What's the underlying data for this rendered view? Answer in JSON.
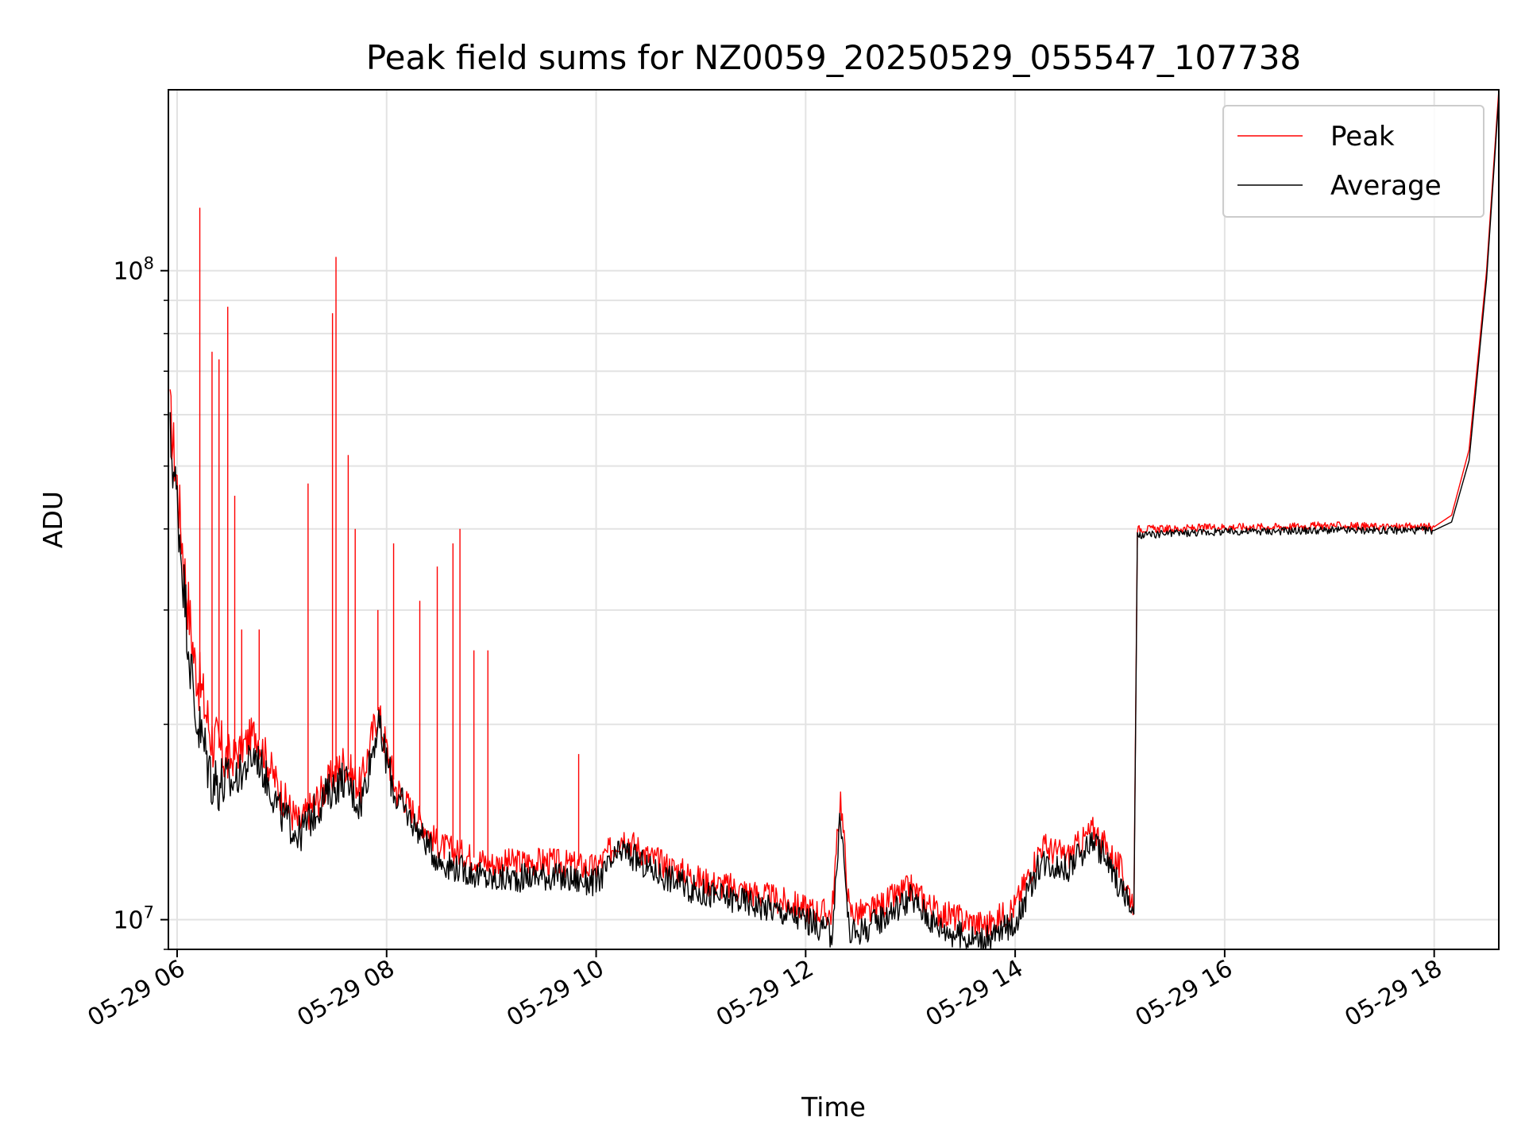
{
  "chart_data": {
    "type": "line",
    "title": "Peak field sums for NZ0059_20250529_055547_107738",
    "xlabel": "Time",
    "ylabel": "ADU",
    "yscale": "log",
    "xlim": [
      "05-29 05:55",
      "05-29 18:37"
    ],
    "ylim": [
      9000000,
      190000000
    ],
    "grid": true,
    "legend": "top-right",
    "x_ticks": [
      "05-29 06",
      "05-29 08",
      "05-29 10",
      "05-29 12",
      "05-29 14",
      "05-29 16",
      "05-29 18"
    ],
    "y_ticks": [
      {
        "value": 10000000,
        "label": "10^7"
      },
      {
        "value": 100000000,
        "label": "10^8"
      }
    ],
    "series": [
      {
        "name": "Peak",
        "color": "#ff0000",
        "x": [
          "05-29 05:56",
          "05-29 06:00",
          "05-29 06:05",
          "05-29 06:10",
          "05-29 06:20",
          "05-29 06:30",
          "05-29 06:45",
          "05-29 07:00",
          "05-29 07:10",
          "05-29 07:25",
          "05-29 07:35",
          "05-29 07:45",
          "05-29 07:55",
          "05-29 08:05",
          "05-29 08:30",
          "05-29 09:00",
          "05-29 09:30",
          "05-29 10:00",
          "05-29 10:15",
          "05-29 10:30",
          "05-29 11:00",
          "05-29 11:30",
          "05-29 12:00",
          "05-29 12:15",
          "05-29 12:20",
          "05-29 12:25",
          "05-29 12:35",
          "05-29 13:00",
          "05-29 13:15",
          "05-29 13:30",
          "05-29 13:45",
          "05-29 14:00",
          "05-29 14:15",
          "05-29 14:30",
          "05-29 14:45",
          "05-29 15:00",
          "05-29 15:08",
          "05-29 15:10",
          "05-29 15:30",
          "05-29 16:00",
          "05-29 16:30",
          "05-29 17:00",
          "05-29 17:30",
          "05-29 18:00",
          "05-29 18:10",
          "05-29 18:20",
          "05-29 18:30",
          "05-29 18:37"
        ],
        "values": [
          60000000,
          47000000,
          33000000,
          25000000,
          19000000,
          17500000,
          19500000,
          15500000,
          14000000,
          16000000,
          17500000,
          16000000,
          21000000,
          16000000,
          13000000,
          12200000,
          12300000,
          12000000,
          13500000,
          12500000,
          11500000,
          11000000,
          10400000,
          10200000,
          15500000,
          10300000,
          10200000,
          11200000,
          10300000,
          10000000,
          9800000,
          10500000,
          13000000,
          12500000,
          13800000,
          12000000,
          10600000,
          40000000,
          40000000,
          40300000,
          40300000,
          40500000,
          40300000,
          40300000,
          42000000,
          53000000,
          100000000,
          190000000
        ],
        "spikes": [
          {
            "x": "05-29 06:13",
            "value": 125000000
          },
          {
            "x": "05-29 06:20",
            "value": 75000000
          },
          {
            "x": "05-29 06:24",
            "value": 73000000
          },
          {
            "x": "05-29 06:29",
            "value": 88000000
          },
          {
            "x": "05-29 06:33",
            "value": 45000000
          },
          {
            "x": "05-29 06:37",
            "value": 28000000
          },
          {
            "x": "05-29 06:47",
            "value": 28000000
          },
          {
            "x": "05-29 07:15",
            "value": 47000000
          },
          {
            "x": "05-29 07:29",
            "value": 86000000
          },
          {
            "x": "05-29 07:31",
            "value": 105000000
          },
          {
            "x": "05-29 07:38",
            "value": 52000000
          },
          {
            "x": "05-29 07:42",
            "value": 40000000
          },
          {
            "x": "05-29 07:55",
            "value": 30000000
          },
          {
            "x": "05-29 08:04",
            "value": 38000000
          },
          {
            "x": "05-29 08:19",
            "value": 31000000
          },
          {
            "x": "05-29 08:29",
            "value": 35000000
          },
          {
            "x": "05-29 08:38",
            "value": 38000000
          },
          {
            "x": "05-29 08:42",
            "value": 40000000
          },
          {
            "x": "05-29 08:50",
            "value": 26000000
          },
          {
            "x": "05-29 08:58",
            "value": 26000000
          },
          {
            "x": "05-29 09:50",
            "value": 18000000
          }
        ]
      },
      {
        "name": "Average",
        "color": "#000000",
        "x": [
          "05-29 05:56",
          "05-29 06:00",
          "05-29 06:05",
          "05-29 06:10",
          "05-29 06:20",
          "05-29 06:30",
          "05-29 06:45",
          "05-29 07:00",
          "05-29 07:10",
          "05-29 07:25",
          "05-29 07:35",
          "05-29 07:45",
          "05-29 07:55",
          "05-29 08:05",
          "05-29 08:30",
          "05-29 09:00",
          "05-29 09:30",
          "05-29 10:00",
          "05-29 10:15",
          "05-29 10:30",
          "05-29 11:00",
          "05-29 11:30",
          "05-29 12:00",
          "05-29 12:15",
          "05-29 12:20",
          "05-29 12:25",
          "05-29 12:35",
          "05-29 13:00",
          "05-29 13:15",
          "05-29 13:30",
          "05-29 13:45",
          "05-29 14:00",
          "05-29 14:15",
          "05-29 14:30",
          "05-29 14:45",
          "05-29 15:00",
          "05-29 15:08",
          "05-29 15:10",
          "05-29 15:30",
          "05-29 16:00",
          "05-29 16:30",
          "05-29 17:00",
          "05-29 17:30",
          "05-29 18:00",
          "05-29 18:10",
          "05-29 18:20",
          "05-29 18:30",
          "05-29 18:37"
        ],
        "values": [
          55000000,
          44000000,
          30000000,
          21000000,
          16500000,
          16000000,
          18000000,
          14500000,
          13500000,
          15500000,
          16500000,
          15000000,
          20000000,
          15500000,
          12300000,
          11500000,
          11700000,
          11400000,
          12800000,
          12000000,
          11000000,
          10600000,
          10000000,
          9500000,
          14500000,
          9500000,
          9700000,
          10800000,
          9800000,
          9400000,
          9300000,
          9900000,
          12300000,
          12000000,
          13300000,
          11300000,
          10200000,
          39000000,
          39400000,
          39600000,
          39700000,
          39800000,
          39800000,
          39800000,
          41000000,
          51000000,
          97000000,
          185000000
        ]
      }
    ]
  }
}
